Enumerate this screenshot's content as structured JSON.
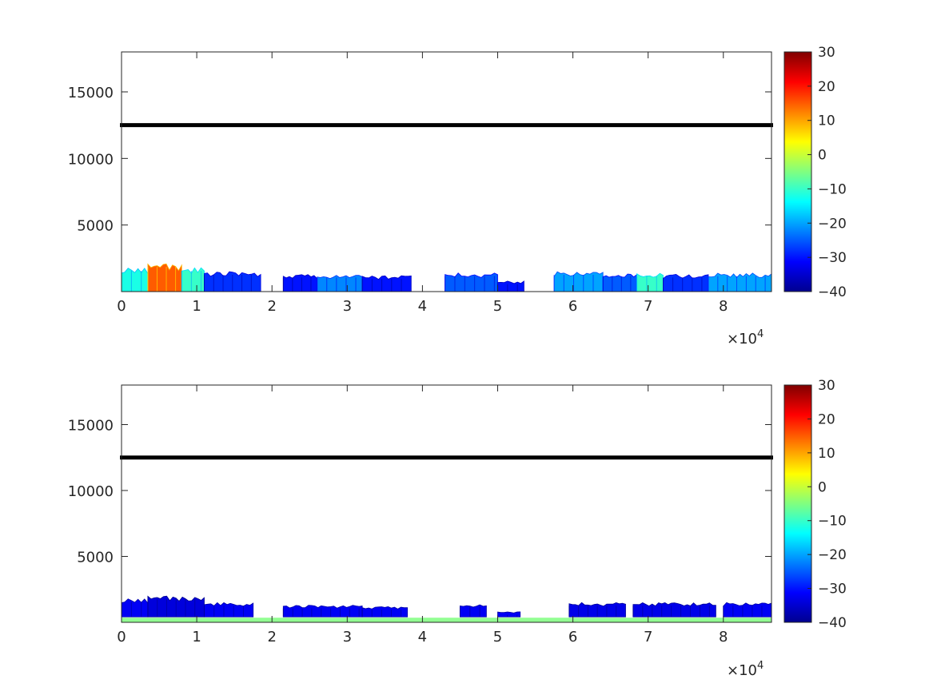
{
  "figure": {
    "background": "#ffffff",
    "axis_color": "#262626",
    "reference_line_color": "#000000"
  },
  "colormap": {
    "name": "jet",
    "stops": [
      "#00008f",
      "#0000ff",
      "#0080ff",
      "#00ffff",
      "#80ff80",
      "#ffff00",
      "#ff8000",
      "#ff0000",
      "#800000"
    ]
  },
  "chart_data": [
    {
      "type": "heatmap",
      "title": "",
      "xlabel": "",
      "ylabel": "",
      "xlim": [
        0,
        86400
      ],
      "ylim": [
        0,
        18000
      ],
      "xticks": [
        0,
        10000,
        20000,
        30000,
        40000,
        50000,
        60000,
        70000,
        80000
      ],
      "xtick_labels": [
        "0",
        "1",
        "2",
        "3",
        "4",
        "5",
        "6",
        "7",
        "8"
      ],
      "x_exponent_label": "×10",
      "x_exponent": "4",
      "yticks": [
        5000,
        10000,
        15000
      ],
      "ytick_labels": [
        "5000",
        "10000",
        "15000"
      ],
      "grid": false,
      "reference_line": {
        "y": 12500,
        "style": "thick black marker line"
      },
      "colorbar": {
        "clim": [
          -40,
          30
        ],
        "ticks": [
          -40,
          -30,
          -20,
          -10,
          0,
          10,
          20,
          30
        ],
        "tick_labels": [
          "-40",
          "-30",
          "-20",
          "-10",
          "0",
          "10",
          "20",
          "30"
        ],
        "location": "right"
      },
      "segments": [
        {
          "x_start": 0,
          "x_end": 3500,
          "y_top": 1800,
          "value": -12
        },
        {
          "x_start": 3500,
          "x_end": 8000,
          "y_top": 2100,
          "value": 15
        },
        {
          "x_start": 8000,
          "x_end": 11000,
          "y_top": 1800,
          "value": -10
        },
        {
          "x_start": 11000,
          "x_end": 18500,
          "y_top": 1500,
          "value": -28
        },
        {
          "x_start": 21500,
          "x_end": 26000,
          "y_top": 1300,
          "value": -30
        },
        {
          "x_start": 26000,
          "x_end": 32000,
          "y_top": 1300,
          "value": -22
        },
        {
          "x_start": 32000,
          "x_end": 38500,
          "y_top": 1200,
          "value": -30
        },
        {
          "x_start": 43000,
          "x_end": 50000,
          "y_top": 1400,
          "value": -25
        },
        {
          "x_start": 50000,
          "x_end": 53500,
          "y_top": 800,
          "value": -30
        },
        {
          "x_start": 57500,
          "x_end": 64000,
          "y_top": 1500,
          "value": -20
        },
        {
          "x_start": 64000,
          "x_end": 68500,
          "y_top": 1400,
          "value": -25
        },
        {
          "x_start": 68500,
          "x_end": 72000,
          "y_top": 1400,
          "value": -10
        },
        {
          "x_start": 72000,
          "x_end": 78000,
          "y_top": 1300,
          "value": -28
        },
        {
          "x_start": 78000,
          "x_end": 86400,
          "y_top": 1400,
          "value": -20
        }
      ]
    },
    {
      "type": "heatmap",
      "title": "",
      "xlabel": "",
      "ylabel": "",
      "xlim": [
        0,
        86400
      ],
      "ylim": [
        0,
        18000
      ],
      "xticks": [
        0,
        10000,
        20000,
        30000,
        40000,
        50000,
        60000,
        70000,
        80000
      ],
      "xtick_labels": [
        "0",
        "1",
        "2",
        "3",
        "4",
        "5",
        "6",
        "7",
        "8"
      ],
      "x_exponent_label": "×10",
      "x_exponent": "4",
      "yticks": [
        5000,
        10000,
        15000
      ],
      "ytick_labels": [
        "5000",
        "10000",
        "15000"
      ],
      "grid": false,
      "reference_line": {
        "y": 12500,
        "style": "thick black marker line"
      },
      "colorbar": {
        "clim": [
          -40,
          30
        ],
        "ticks": [
          -40,
          -30,
          -20,
          -10,
          0,
          10,
          20,
          30
        ],
        "tick_labels": [
          "-40",
          "-30",
          "-20",
          "-10",
          "0",
          "10",
          "20",
          "30"
        ],
        "location": "right"
      },
      "surface_band": {
        "y_top": 350,
        "value": -5
      },
      "segments": [
        {
          "x_start": 0,
          "x_end": 3500,
          "y_top": 1800,
          "value": -32
        },
        {
          "x_start": 3500,
          "x_end": 11000,
          "y_top": 2000,
          "value": -34
        },
        {
          "x_start": 11000,
          "x_end": 17500,
          "y_top": 1500,
          "value": -32
        },
        {
          "x_start": 21500,
          "x_end": 32000,
          "y_top": 1300,
          "value": -32
        },
        {
          "x_start": 32000,
          "x_end": 38000,
          "y_top": 1200,
          "value": -32
        },
        {
          "x_start": 45000,
          "x_end": 48500,
          "y_top": 1400,
          "value": -32
        },
        {
          "x_start": 50000,
          "x_end": 53000,
          "y_top": 800,
          "value": -32
        },
        {
          "x_start": 59500,
          "x_end": 67000,
          "y_top": 1500,
          "value": -33
        },
        {
          "x_start": 68000,
          "x_end": 79000,
          "y_top": 1500,
          "value": -33
        },
        {
          "x_start": 80000,
          "x_end": 86400,
          "y_top": 1500,
          "value": -32
        }
      ]
    }
  ]
}
